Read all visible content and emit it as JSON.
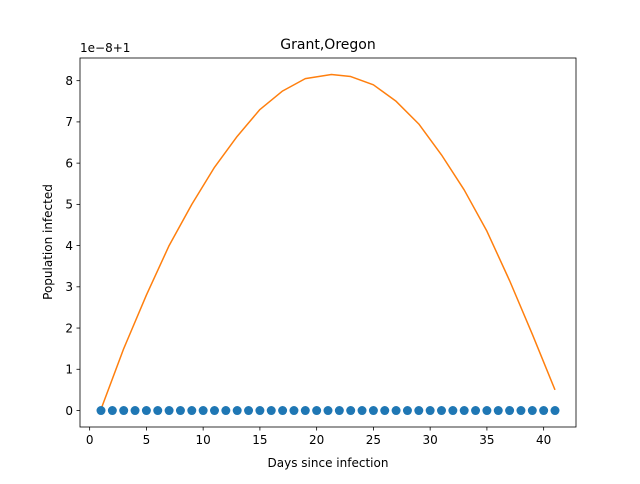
{
  "chart_data": {
    "type": "scatter+line",
    "title": "Grant,Oregon",
    "xlabel": "Days since infection",
    "ylabel": "Population infected",
    "offset_text": "1e−8+1",
    "xlim": [
      -0.85,
      42.85
    ],
    "ylim": [
      -0.4,
      8.55
    ],
    "x_ticks": [
      0,
      5,
      10,
      15,
      20,
      25,
      30,
      35,
      40
    ],
    "y_ticks": [
      0,
      1,
      2,
      3,
      4,
      5,
      6,
      7,
      8
    ],
    "series": [
      {
        "kind": "scatter",
        "color": "#1f77b4",
        "x": [
          1,
          2,
          3,
          4,
          5,
          6,
          7,
          8,
          9,
          10,
          11,
          12,
          13,
          14,
          15,
          16,
          17,
          18,
          19,
          20,
          21,
          22,
          23,
          24,
          25,
          26,
          27,
          28,
          29,
          30,
          31,
          32,
          33,
          34,
          35,
          36,
          37,
          38,
          39,
          40,
          41
        ],
        "y": [
          0,
          0,
          0,
          0,
          0,
          0,
          0,
          0,
          0,
          0,
          0,
          0,
          0,
          0,
          0,
          0,
          0,
          0,
          0,
          0,
          0,
          0,
          0,
          0,
          0,
          0,
          0,
          0,
          0,
          0,
          0,
          0,
          0,
          0,
          0,
          0,
          0,
          0,
          0,
          0,
          0
        ]
      },
      {
        "kind": "line",
        "color": "#ff7f0e",
        "x": [
          1,
          3,
          5,
          7,
          9,
          11,
          13,
          15,
          17,
          19,
          21.3,
          23,
          25,
          27,
          29,
          31,
          33,
          35,
          37,
          39,
          41
        ],
        "y": [
          0.03,
          1.5,
          2.8,
          4.0,
          5.0,
          5.9,
          6.65,
          7.3,
          7.75,
          8.05,
          8.15,
          8.1,
          7.9,
          7.5,
          6.95,
          6.2,
          5.35,
          4.35,
          3.15,
          1.85,
          0.5
        ]
      }
    ]
  }
}
